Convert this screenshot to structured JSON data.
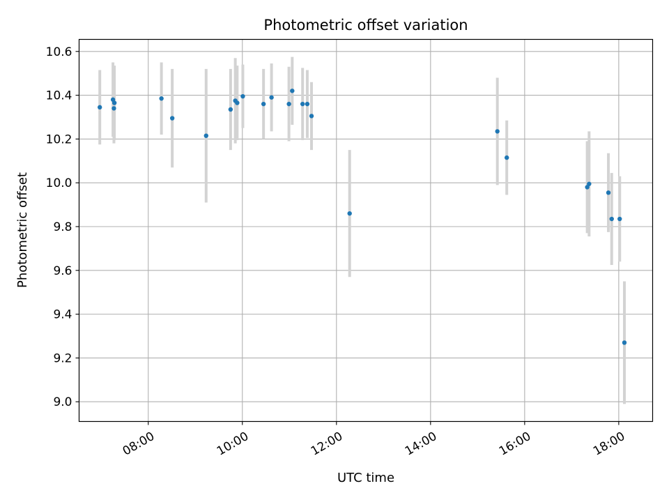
{
  "chart_data": {
    "type": "scatter",
    "title": "Photometric offset variation",
    "xlabel": "UTC time",
    "ylabel": "Photometric offset",
    "x_tick_labels": [
      "08:00",
      "10:00",
      "12:00",
      "14:00",
      "16:00",
      "18:00"
    ],
    "x_tick_hours": [
      8,
      10,
      12,
      14,
      16,
      18
    ],
    "y_ticks": [
      9.0,
      9.2,
      9.4,
      9.6,
      9.8,
      10.0,
      10.2,
      10.4,
      10.6
    ],
    "y_tick_labels": [
      "9.0",
      "9.2",
      "9.4",
      "9.6",
      "9.8",
      "10.0",
      "10.2",
      "10.4",
      "10.6"
    ],
    "xlim_hours": [
      6.53,
      18.72
    ],
    "ylim": [
      8.91,
      10.655
    ],
    "grid": true,
    "series": [
      {
        "marker_color": "#1f77b4",
        "errorbar_color": "#d3d3d3",
        "points": [
          {
            "t": 6.97,
            "y": 10.345,
            "err": 0.17
          },
          {
            "t": 7.25,
            "y": 10.38,
            "err": 0.17
          },
          {
            "t": 7.27,
            "y": 10.34,
            "err": 0.16
          },
          {
            "t": 7.28,
            "y": 10.365,
            "err": 0.17
          },
          {
            "t": 8.28,
            "y": 10.385,
            "err": 0.165
          },
          {
            "t": 8.51,
            "y": 10.295,
            "err": 0.225
          },
          {
            "t": 9.23,
            "y": 10.215,
            "err": 0.305
          },
          {
            "t": 9.75,
            "y": 10.335,
            "err": 0.185
          },
          {
            "t": 9.85,
            "y": 10.375,
            "err": 0.195
          },
          {
            "t": 9.89,
            "y": 10.365,
            "err": 0.17
          },
          {
            "t": 10.01,
            "y": 10.395,
            "err": 0.145
          },
          {
            "t": 10.45,
            "y": 10.36,
            "err": 0.16
          },
          {
            "t": 10.62,
            "y": 10.39,
            "err": 0.155
          },
          {
            "t": 10.99,
            "y": 10.36,
            "err": 0.17
          },
          {
            "t": 11.06,
            "y": 10.42,
            "err": 0.155
          },
          {
            "t": 11.28,
            "y": 10.36,
            "err": 0.165
          },
          {
            "t": 11.38,
            "y": 10.36,
            "err": 0.155
          },
          {
            "t": 11.47,
            "y": 10.305,
            "err": 0.155
          },
          {
            "t": 12.28,
            "y": 9.86,
            "err": 0.29
          },
          {
            "t": 15.42,
            "y": 10.235,
            "err": 0.245
          },
          {
            "t": 15.62,
            "y": 10.115,
            "err": 0.17
          },
          {
            "t": 17.33,
            "y": 9.98,
            "err": 0.21
          },
          {
            "t": 17.37,
            "y": 9.995,
            "err": 0.24
          },
          {
            "t": 17.78,
            "y": 9.955,
            "err": 0.18
          },
          {
            "t": 17.85,
            "y": 9.835,
            "err": 0.21
          },
          {
            "t": 18.02,
            "y": 9.835,
            "err": 0.195
          },
          {
            "t": 18.12,
            "y": 9.27,
            "err": 0.28
          }
        ]
      }
    ]
  }
}
